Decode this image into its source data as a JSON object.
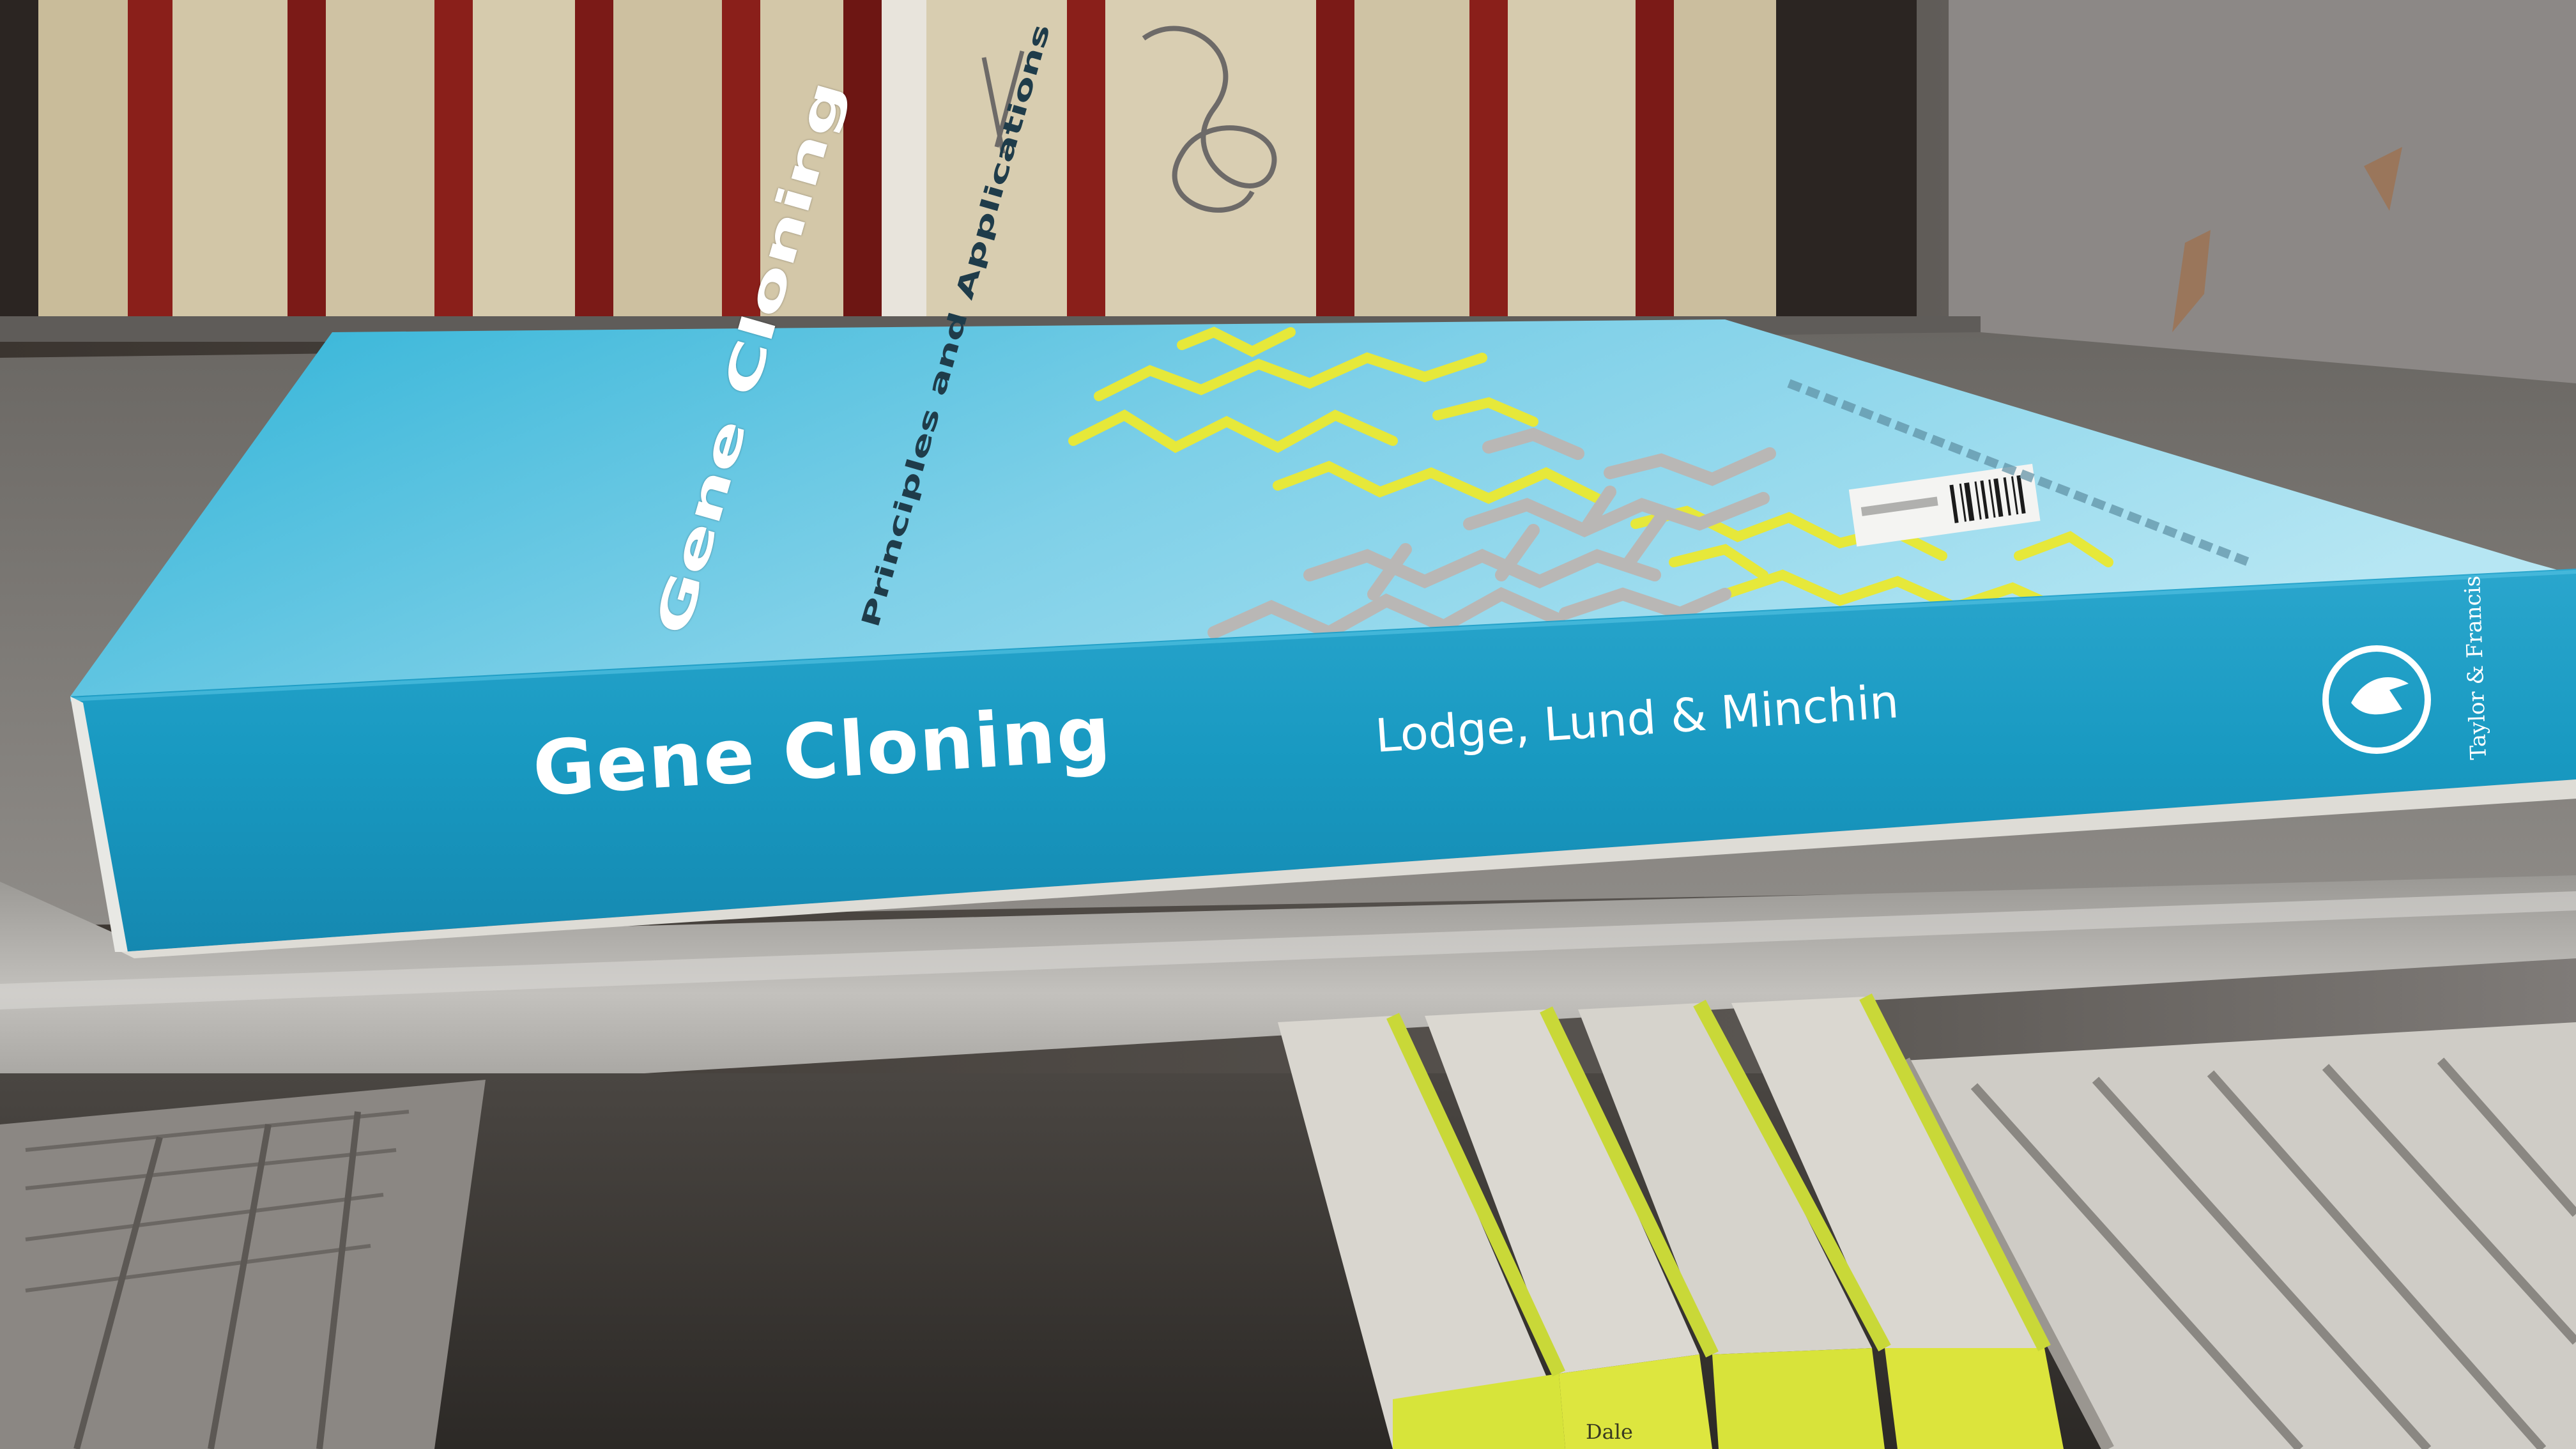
{
  "book": {
    "spine_title": "Gene Cloning",
    "spine_authors": "Lodge, Lund & Minchin",
    "publisher": "Taylor & Francis",
    "cover_title": "Gene Cloning",
    "cover_subtitle": "Principles and Applications"
  },
  "lower_shelf": {
    "book_label": "Dale"
  },
  "colors": {
    "spine_blue": "#1a9cc2",
    "cover_light_blue": "#8fd4ea",
    "molecule_yellow": "#e6e83a",
    "molecule_grey": "#b9b7b5",
    "shelf_grey": "#b7b5b1",
    "upper_book_red": "#8a1f1a"
  },
  "icons": {
    "publisher_logo": "bird-logo-icon",
    "barcode": "barcode-icon"
  }
}
